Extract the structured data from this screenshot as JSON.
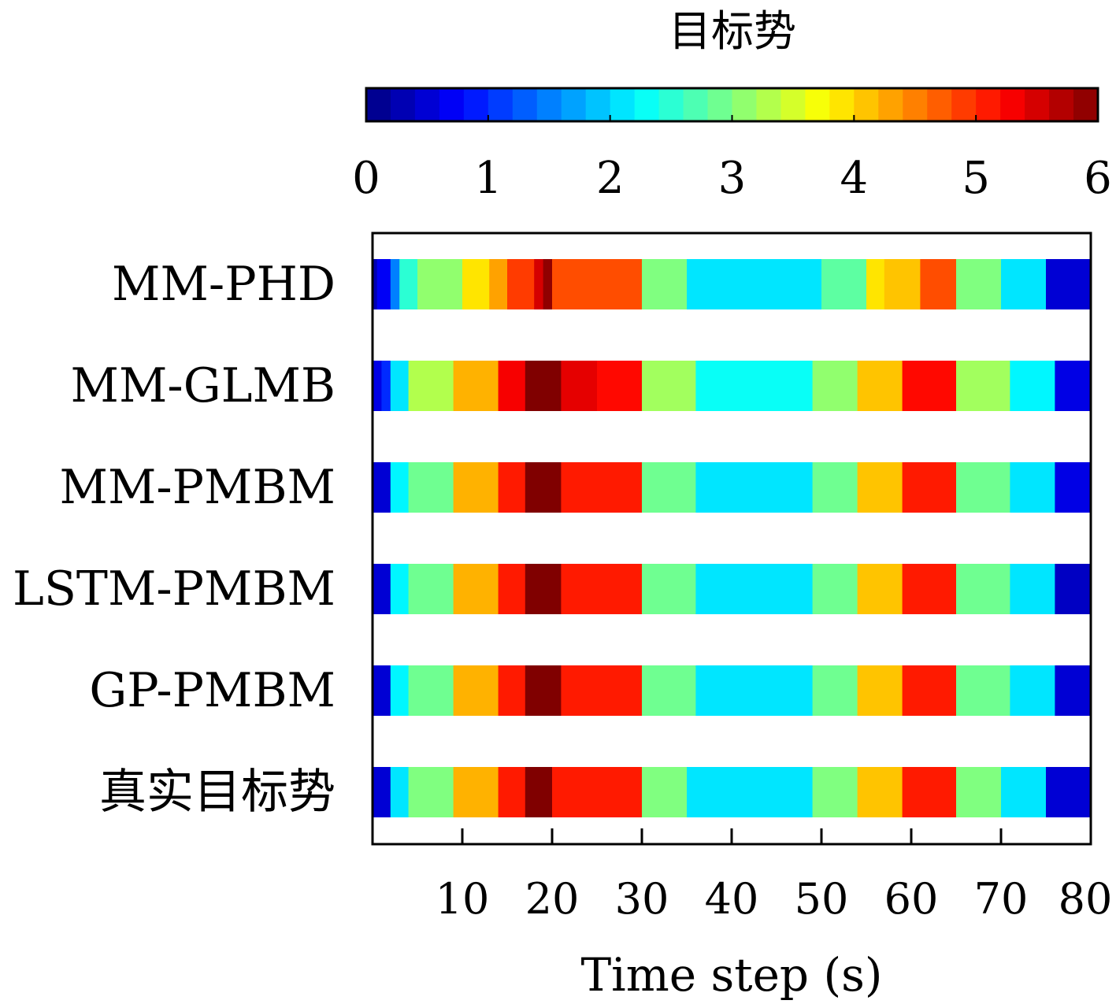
{
  "chart_data": {
    "type": "heatmap",
    "title": "",
    "xlabel": "Time step (s)",
    "ylabel": "",
    "xlim": [
      0,
      80
    ],
    "x_ticks": [
      10,
      20,
      30,
      40,
      50,
      60,
      70,
      80
    ],
    "colorbar": {
      "label": "目标势",
      "range": [
        0,
        6
      ],
      "ticks": [
        0,
        1,
        2,
        3,
        4,
        5,
        6
      ],
      "colormap": "jet"
    },
    "series": [
      {
        "name": "MM-PHD",
        "segments": [
          {
            "start": 0,
            "end": 0.5,
            "value": 0.3
          },
          {
            "start": 0.5,
            "end": 2,
            "value": 0.7
          },
          {
            "start": 2,
            "end": 3,
            "value": 1.5
          },
          {
            "start": 3,
            "end": 5,
            "value": 2.5
          },
          {
            "start": 5,
            "end": 10,
            "value": 3.1
          },
          {
            "start": 10,
            "end": 13,
            "value": 3.9
          },
          {
            "start": 13,
            "end": 15,
            "value": 4.3
          },
          {
            "start": 15,
            "end": 18,
            "value": 4.9
          },
          {
            "start": 18,
            "end": 19,
            "value": 5.5
          },
          {
            "start": 19,
            "end": 20,
            "value": 5.9
          },
          {
            "start": 20,
            "end": 30,
            "value": 4.8
          },
          {
            "start": 30,
            "end": 35,
            "value": 3.0
          },
          {
            "start": 35,
            "end": 50,
            "value": 2.1
          },
          {
            "start": 50,
            "end": 55,
            "value": 2.8
          },
          {
            "start": 55,
            "end": 57,
            "value": 3.9
          },
          {
            "start": 57,
            "end": 61,
            "value": 4.1
          },
          {
            "start": 61,
            "end": 65,
            "value": 4.8
          },
          {
            "start": 65,
            "end": 70,
            "value": 3.0
          },
          {
            "start": 70,
            "end": 75,
            "value": 2.1
          },
          {
            "start": 75,
            "end": 80,
            "value": 0.5
          }
        ]
      },
      {
        "name": "MM-GLMB",
        "segments": [
          {
            "start": 0,
            "end": 1,
            "value": 0.6
          },
          {
            "start": 1,
            "end": 2,
            "value": 1.0
          },
          {
            "start": 2,
            "end": 4,
            "value": 2.1
          },
          {
            "start": 4,
            "end": 9,
            "value": 3.3
          },
          {
            "start": 9,
            "end": 14,
            "value": 4.2
          },
          {
            "start": 14,
            "end": 17,
            "value": 5.3
          },
          {
            "start": 17,
            "end": 21,
            "value": 6.0
          },
          {
            "start": 21,
            "end": 25,
            "value": 5.4
          },
          {
            "start": 25,
            "end": 30,
            "value": 5.2
          },
          {
            "start": 30,
            "end": 36,
            "value": 3.2
          },
          {
            "start": 36,
            "end": 49,
            "value": 2.3
          },
          {
            "start": 49,
            "end": 54,
            "value": 3.1
          },
          {
            "start": 54,
            "end": 59,
            "value": 4.1
          },
          {
            "start": 59,
            "end": 65,
            "value": 5.2
          },
          {
            "start": 65,
            "end": 71,
            "value": 3.2
          },
          {
            "start": 71,
            "end": 76,
            "value": 2.2
          },
          {
            "start": 76,
            "end": 80,
            "value": 0.6
          }
        ]
      },
      {
        "name": "MM-PMBM",
        "segments": [
          {
            "start": 0,
            "end": 2,
            "value": 0.5
          },
          {
            "start": 2,
            "end": 4,
            "value": 2.2
          },
          {
            "start": 4,
            "end": 9,
            "value": 2.9
          },
          {
            "start": 9,
            "end": 14,
            "value": 4.2
          },
          {
            "start": 14,
            "end": 17,
            "value": 5.1
          },
          {
            "start": 17,
            "end": 21,
            "value": 6.0
          },
          {
            "start": 21,
            "end": 30,
            "value": 5.1
          },
          {
            "start": 30,
            "end": 36,
            "value": 2.9
          },
          {
            "start": 36,
            "end": 49,
            "value": 2.1
          },
          {
            "start": 49,
            "end": 54,
            "value": 2.9
          },
          {
            "start": 54,
            "end": 59,
            "value": 4.1
          },
          {
            "start": 59,
            "end": 65,
            "value": 5.1
          },
          {
            "start": 65,
            "end": 71,
            "value": 2.9
          },
          {
            "start": 71,
            "end": 76,
            "value": 2.1
          },
          {
            "start": 76,
            "end": 80,
            "value": 0.6
          }
        ]
      },
      {
        "name": "LSTM-PMBM",
        "segments": [
          {
            "start": 0,
            "end": 2,
            "value": 0.5
          },
          {
            "start": 2,
            "end": 4,
            "value": 2.2
          },
          {
            "start": 4,
            "end": 9,
            "value": 2.9
          },
          {
            "start": 9,
            "end": 14,
            "value": 4.2
          },
          {
            "start": 14,
            "end": 17,
            "value": 5.1
          },
          {
            "start": 17,
            "end": 21,
            "value": 6.0
          },
          {
            "start": 21,
            "end": 30,
            "value": 5.1
          },
          {
            "start": 30,
            "end": 36,
            "value": 2.9
          },
          {
            "start": 36,
            "end": 49,
            "value": 2.1
          },
          {
            "start": 49,
            "end": 54,
            "value": 2.9
          },
          {
            "start": 54,
            "end": 59,
            "value": 4.1
          },
          {
            "start": 59,
            "end": 65,
            "value": 5.1
          },
          {
            "start": 65,
            "end": 71,
            "value": 2.9
          },
          {
            "start": 71,
            "end": 76,
            "value": 2.1
          },
          {
            "start": 76,
            "end": 80,
            "value": 0.4
          }
        ]
      },
      {
        "name": "GP-PMBM",
        "segments": [
          {
            "start": 0,
            "end": 2,
            "value": 0.5
          },
          {
            "start": 2,
            "end": 4,
            "value": 2.2
          },
          {
            "start": 4,
            "end": 9,
            "value": 2.9
          },
          {
            "start": 9,
            "end": 14,
            "value": 4.2
          },
          {
            "start": 14,
            "end": 17,
            "value": 5.1
          },
          {
            "start": 17,
            "end": 21,
            "value": 6.0
          },
          {
            "start": 21,
            "end": 30,
            "value": 5.1
          },
          {
            "start": 30,
            "end": 36,
            "value": 2.9
          },
          {
            "start": 36,
            "end": 49,
            "value": 2.1
          },
          {
            "start": 49,
            "end": 54,
            "value": 2.9
          },
          {
            "start": 54,
            "end": 59,
            "value": 4.1
          },
          {
            "start": 59,
            "end": 65,
            "value": 5.1
          },
          {
            "start": 65,
            "end": 71,
            "value": 2.9
          },
          {
            "start": 71,
            "end": 76,
            "value": 2.1
          },
          {
            "start": 76,
            "end": 80,
            "value": 0.5
          }
        ]
      },
      {
        "name": "真实目标势",
        "segments": [
          {
            "start": 0,
            "end": 2,
            "value": 0.5
          },
          {
            "start": 2,
            "end": 4,
            "value": 2.1
          },
          {
            "start": 4,
            "end": 9,
            "value": 3.0
          },
          {
            "start": 9,
            "end": 14,
            "value": 4.2
          },
          {
            "start": 14,
            "end": 17,
            "value": 5.1
          },
          {
            "start": 17,
            "end": 20,
            "value": 6.0
          },
          {
            "start": 20,
            "end": 30,
            "value": 5.1
          },
          {
            "start": 30,
            "end": 35,
            "value": 3.0
          },
          {
            "start": 35,
            "end": 49,
            "value": 2.1
          },
          {
            "start": 49,
            "end": 54,
            "value": 3.0
          },
          {
            "start": 54,
            "end": 59,
            "value": 4.1
          },
          {
            "start": 59,
            "end": 65,
            "value": 5.1
          },
          {
            "start": 65,
            "end": 70,
            "value": 3.0
          },
          {
            "start": 70,
            "end": 75,
            "value": 2.1
          },
          {
            "start": 75,
            "end": 80,
            "value": 0.5
          }
        ]
      }
    ]
  }
}
